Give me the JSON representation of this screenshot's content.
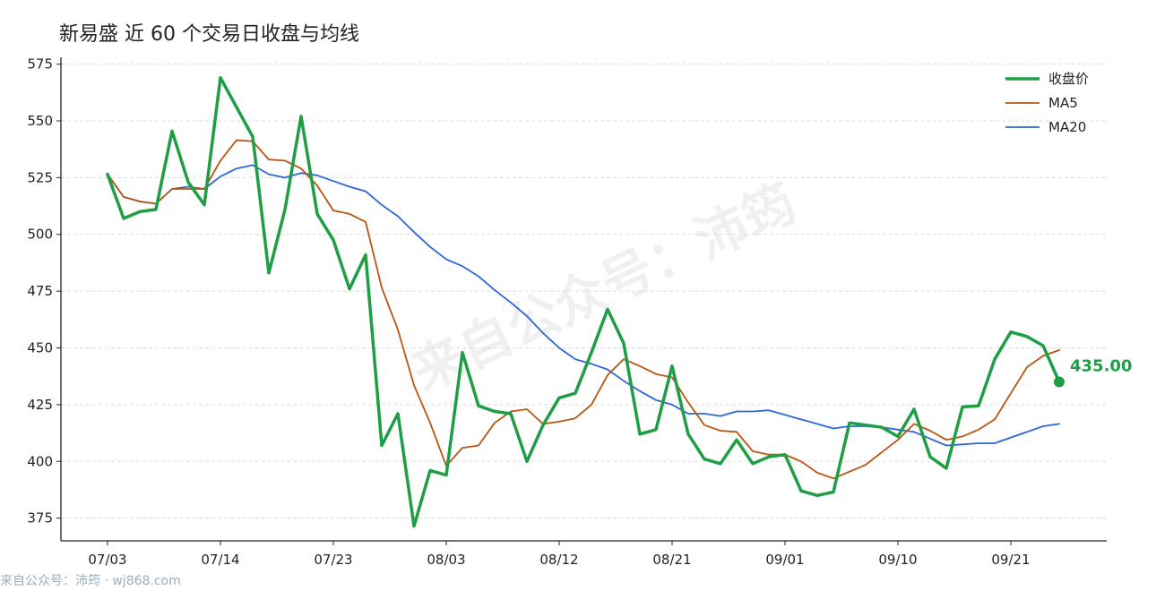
{
  "title": "新易盛 近 60 个交易日收盘与均线",
  "watermark": "来自公众号：沛筠",
  "footer": "来自公众号：沛筠 · wj868.com",
  "colors": {
    "close": "#1e9e45",
    "ma5": "#b8550f",
    "ma20": "#2d66d6"
  },
  "chart_data": {
    "type": "line",
    "title": "新易盛 近 60 个交易日收盘与均线",
    "ylim": [
      365,
      578
    ],
    "yticks": [
      375,
      400,
      425,
      450,
      475,
      500,
      525,
      550,
      575
    ],
    "xtick_labels": [
      "07/03",
      "07/14",
      "07/23",
      "08/03",
      "08/12",
      "08/21",
      "09/01",
      "09/10",
      "09/21"
    ],
    "xtick_index": [
      0,
      7,
      14,
      21,
      28,
      35,
      42,
      49,
      56
    ],
    "grid": "horizontal dashed",
    "legend": "top-right",
    "last_value_label": "435.00",
    "series": [
      {
        "name": "收盘价",
        "color": "#1e9e45",
        "values": [
          526.5,
          507,
          510,
          511,
          545.5,
          523,
          513,
          569,
          556,
          543,
          483,
          511,
          552,
          509,
          497.5,
          476,
          491,
          407,
          421,
          371.5,
          396,
          394,
          448,
          424.5,
          422,
          421,
          400,
          416,
          428,
          430,
          448,
          467,
          452,
          412,
          414,
          442,
          412,
          401,
          399,
          409.5,
          399,
          402,
          403,
          387,
          385,
          386.5,
          417,
          416,
          415,
          411,
          423,
          402,
          397,
          424,
          424.5,
          445,
          457,
          455,
          451,
          435
        ]
      },
      {
        "name": "MA5",
        "color": "#b8550f",
        "values": [
          526.5,
          516.5,
          514.5,
          513.5,
          520,
          520,
          520,
          532.5,
          541.5,
          541,
          533,
          532.5,
          529,
          521.5,
          510.5,
          509,
          505.5,
          476.5,
          458,
          433.5,
          417,
          398,
          406,
          407,
          417,
          422,
          423,
          416.5,
          417.5,
          419,
          425,
          438,
          445,
          442,
          438.5,
          437,
          426,
          416,
          413.5,
          413,
          404.5,
          403,
          403,
          400,
          395,
          392.5,
          395.5,
          398.5,
          404,
          409.5,
          416.5,
          413.5,
          409.5,
          411,
          414,
          418.5,
          430,
          441.5,
          446.5,
          449
        ]
      },
      {
        "name": "MA20",
        "color": "#2d66d6",
        "values": [
          526.5,
          516.5,
          514.5,
          513.5,
          520,
          521,
          520,
          525.5,
          529,
          530.5,
          526.5,
          525,
          527,
          526,
          523.5,
          521,
          519,
          513,
          508,
          501,
          494.5,
          489,
          486,
          481.5,
          475.5,
          470,
          464,
          456.5,
          450,
          445,
          443,
          440.5,
          435.5,
          431,
          427,
          425,
          421,
          421,
          420,
          422,
          422,
          422.5,
          420.5,
          418.5,
          416.5,
          414.5,
          415.5,
          415.5,
          415,
          414,
          413,
          410,
          407,
          407.5,
          408,
          408,
          410.5,
          413,
          415.5,
          416.5
        ]
      }
    ]
  }
}
